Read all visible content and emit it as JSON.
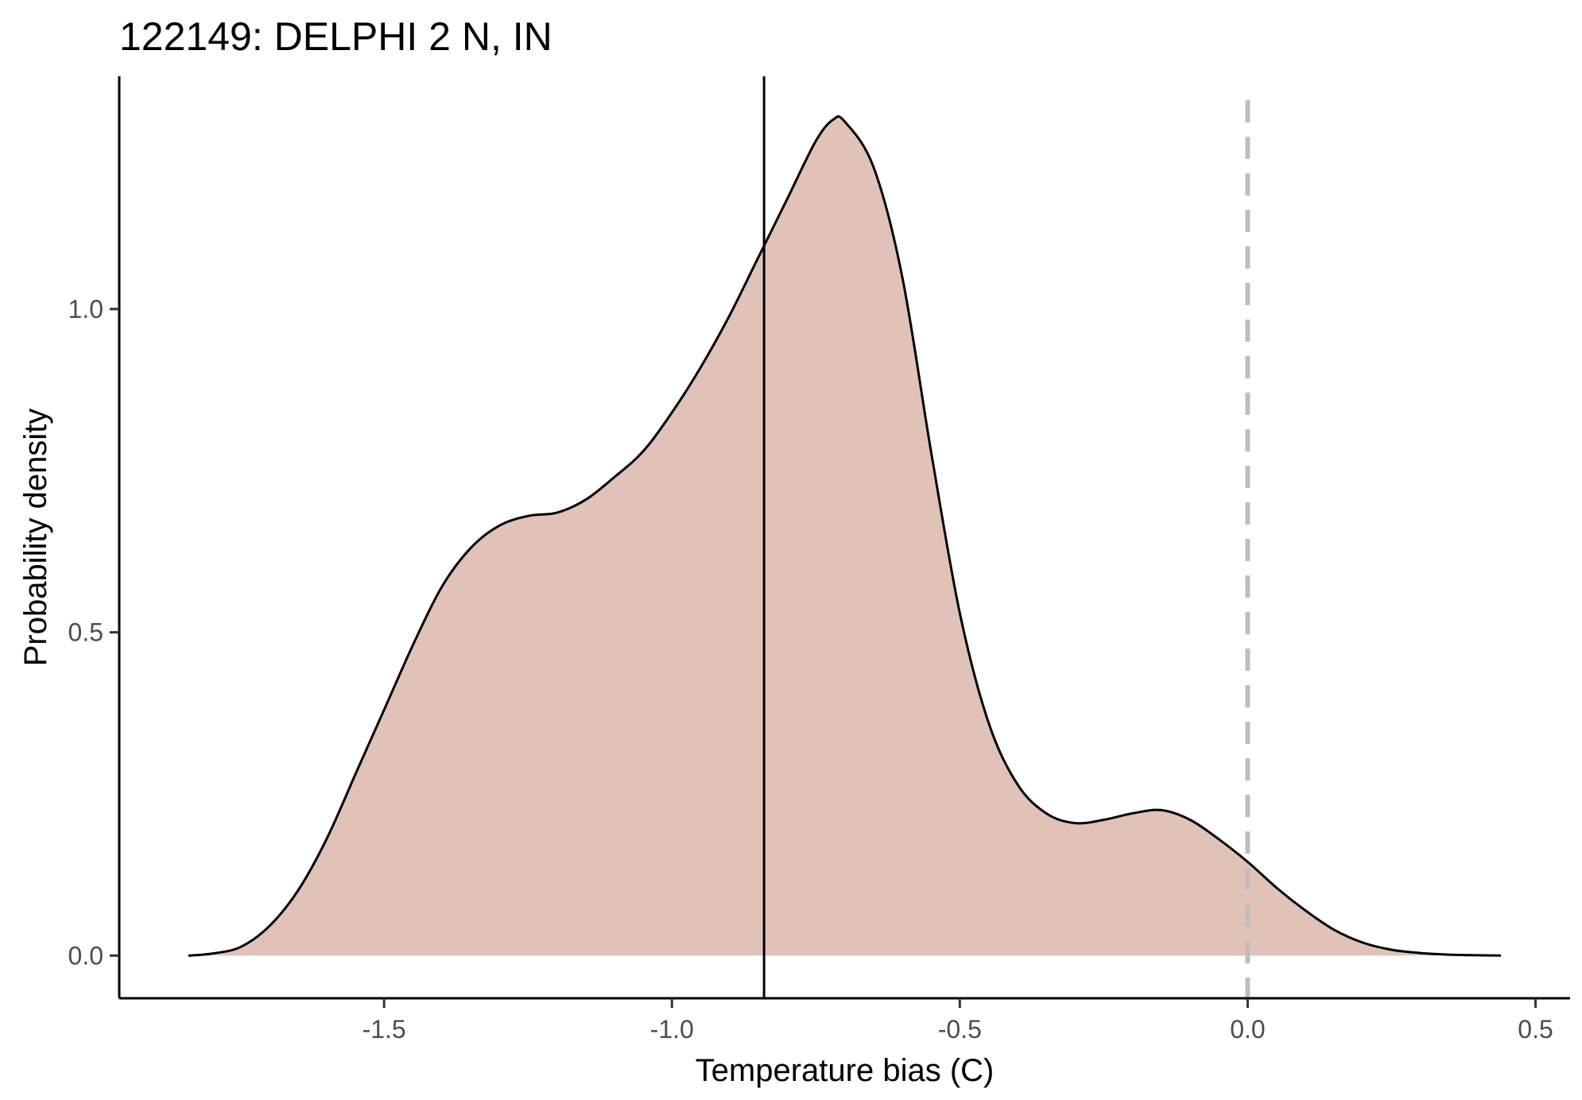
{
  "chart_data": {
    "type": "area",
    "title": "122149: DELPHI 2 N, IN",
    "xlabel": "Temperature bias (C)",
    "ylabel": "Probability density",
    "xlim": [
      -1.96,
      0.56
    ],
    "ylim": [
      -0.066,
      1.36
    ],
    "x_ticks": [
      -1.5,
      -1.0,
      -0.5,
      0.0,
      0.5
    ],
    "x_tick_labels": [
      "-1.5",
      "-1.0",
      "-0.5",
      "0.0",
      "0.5"
    ],
    "y_ticks": [
      0.0,
      0.5,
      1.0
    ],
    "y_tick_labels": [
      "0.0",
      "0.5",
      "1.0"
    ],
    "grid": false,
    "legend": "none",
    "series": [
      {
        "fill": "#e1c2b8",
        "stroke": "#000000",
        "x": [
          -1.84,
          -1.8,
          -1.75,
          -1.7,
          -1.65,
          -1.6,
          -1.55,
          -1.5,
          -1.45,
          -1.4,
          -1.35,
          -1.3,
          -1.25,
          -1.2,
          -1.15,
          -1.1,
          -1.05,
          -1.0,
          -0.95,
          -0.9,
          -0.85,
          -0.8,
          -0.75,
          -0.72,
          -0.7,
          -0.65,
          -0.6,
          -0.55,
          -0.5,
          -0.45,
          -0.4,
          -0.35,
          -0.3,
          -0.25,
          -0.2,
          -0.15,
          -0.1,
          -0.05,
          0.0,
          0.05,
          0.1,
          0.15,
          0.2,
          0.25,
          0.3,
          0.35,
          0.4,
          0.44
        ],
        "y": [
          0.0,
          0.003,
          0.013,
          0.045,
          0.1,
          0.18,
          0.28,
          0.38,
          0.48,
          0.57,
          0.63,
          0.665,
          0.68,
          0.685,
          0.705,
          0.74,
          0.78,
          0.84,
          0.91,
          0.99,
          1.08,
          1.17,
          1.26,
          1.293,
          1.29,
          1.22,
          1.05,
          0.78,
          0.53,
          0.36,
          0.265,
          0.22,
          0.205,
          0.21,
          0.22,
          0.225,
          0.21,
          0.18,
          0.145,
          0.105,
          0.07,
          0.04,
          0.02,
          0.009,
          0.004,
          0.0015,
          0.0005,
          0.0
        ]
      }
    ],
    "reference_lines": [
      {
        "orientation": "vertical",
        "x": -0.84,
        "style": "solid",
        "color": "#000000"
      },
      {
        "orientation": "vertical",
        "x": 0.0,
        "style": "dashed",
        "color": "#bebebe"
      }
    ]
  }
}
